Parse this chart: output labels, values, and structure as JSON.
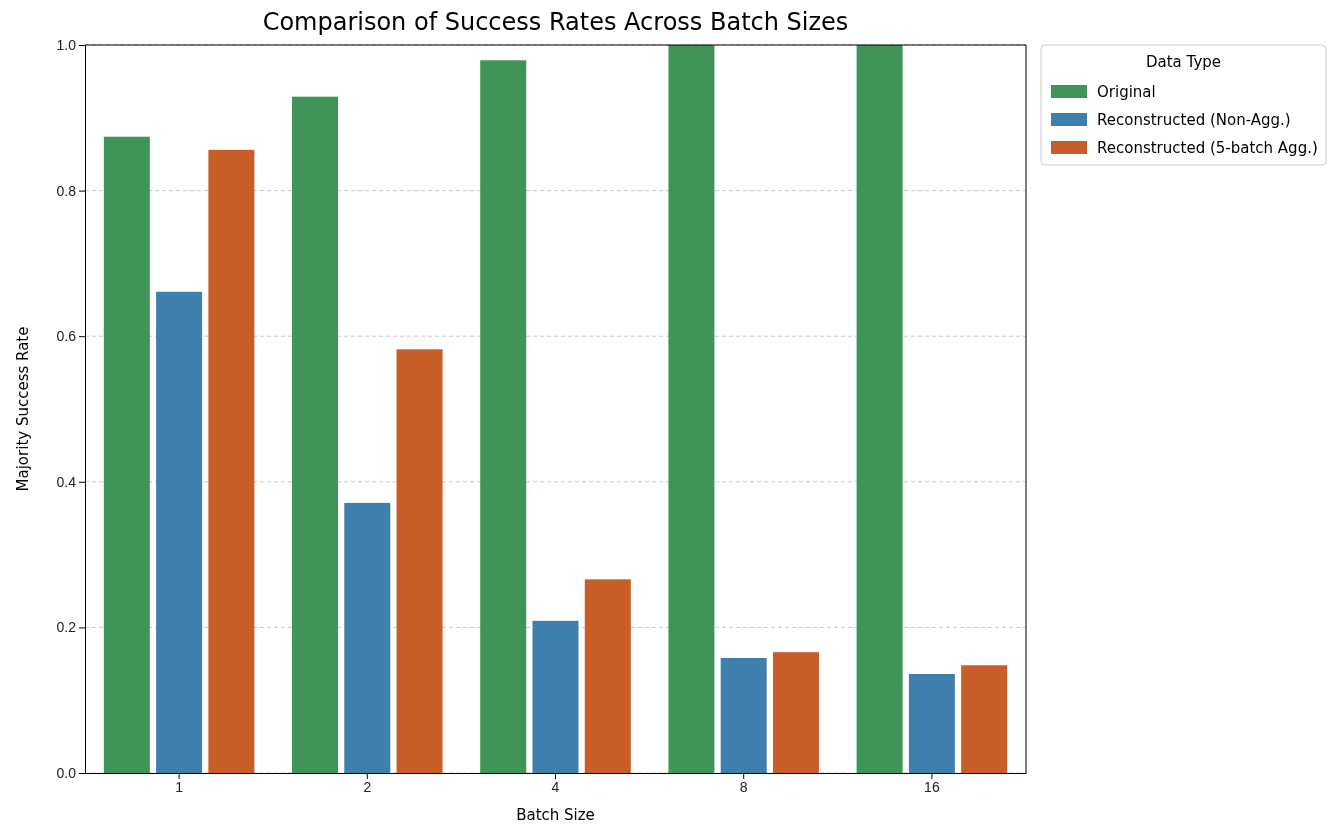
{
  "chart_data": {
    "type": "bar",
    "title": "Comparison of Success Rates Across Batch Sizes",
    "xlabel": "Batch Size",
    "ylabel": "Majority Success Rate",
    "legend_title": "Data Type",
    "categories": [
      "1",
      "2",
      "4",
      "8",
      "16"
    ],
    "series": [
      {
        "name": "Original",
        "color": "#3f9557",
        "values": [
          0.874,
          0.929,
          0.979,
          1.0,
          1.0
        ]
      },
      {
        "name": "Reconstructed (Non-Agg.)",
        "color": "#3f7fad",
        "values": [
          0.661,
          0.371,
          0.209,
          0.158,
          0.136
        ]
      },
      {
        "name": "Reconstructed (5-batch Agg.)",
        "color": "#c95d28",
        "values": [
          0.856,
          0.582,
          0.266,
          0.166,
          0.148
        ]
      }
    ],
    "ylim": [
      0,
      1.0
    ],
    "yticks": [
      {
        "value": 0,
        "label": "0.0"
      },
      0.2,
      0.4,
      0.6,
      0.8,
      {
        "value": 1,
        "label": "1.0"
      }
    ],
    "grid": "y",
    "legend": "top right"
  }
}
